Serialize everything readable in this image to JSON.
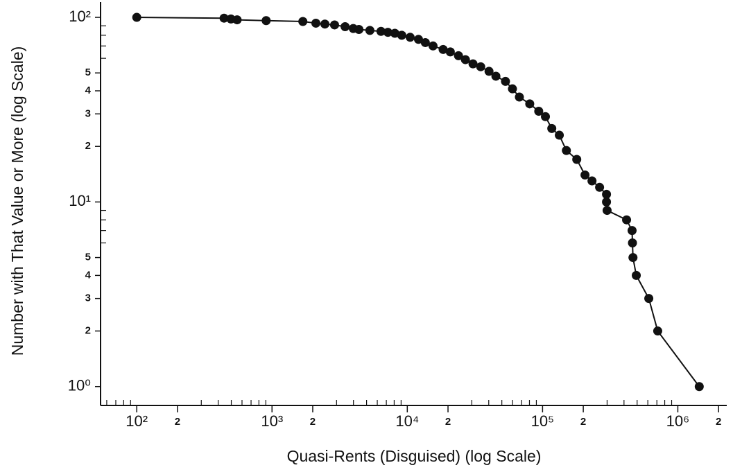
{
  "chart_data": {
    "type": "line",
    "x_label": "Quasi-Rents (Disguised) (log Scale)",
    "y_label": "Number with That Value or More (log Scale)",
    "xscale": "log",
    "yscale": "log",
    "xlim": [
      54,
      2300000
    ],
    "ylim": [
      0.79,
      121
    ],
    "xticks": [
      {
        "value": 100,
        "label": "10²"
      },
      {
        "value": 200,
        "label": "2"
      },
      {
        "value": 1000,
        "label": "10³"
      },
      {
        "value": 2000,
        "label": "2"
      },
      {
        "value": 10000,
        "label": "10⁴"
      },
      {
        "value": 20000,
        "label": "2"
      },
      {
        "value": 100000,
        "label": "10⁵"
      },
      {
        "value": 200000,
        "label": "2"
      },
      {
        "value": 1000000,
        "label": "10⁶"
      },
      {
        "value": 2000000,
        "label": "2"
      }
    ],
    "xminorticks": [
      60,
      70,
      80,
      90,
      300,
      400,
      500,
      600,
      700,
      800,
      900,
      3000,
      4000,
      5000,
      6000,
      7000,
      8000,
      9000,
      30000,
      40000,
      50000,
      60000,
      70000,
      80000,
      90000,
      300000,
      400000,
      500000,
      600000,
      700000,
      800000,
      900000
    ],
    "yticks": [
      {
        "value": 1,
        "label": "10⁰"
      },
      2,
      3,
      4,
      5,
      {
        "value": 10,
        "label": "10¹"
      },
      {
        "value": 20,
        "label": "2"
      },
      {
        "value": 30,
        "label": "3"
      },
      {
        "value": 40,
        "label": "4"
      },
      {
        "value": 50,
        "label": "5"
      },
      {
        "value": 100,
        "label": "10²"
      }
    ],
    "yminorticks": [
      6,
      7,
      8,
      9,
      60,
      70,
      80,
      90
    ],
    "series": [
      {
        "color": "#111111",
        "x": [
          100,
          442,
          497,
          552,
          905,
          1690,
          2110,
          2460,
          2900,
          3470,
          3990,
          4390,
          5290,
          6390,
          7190,
          8090,
          9100,
          10500,
          12100,
          13600,
          15500,
          18400,
          20800,
          23900,
          26900,
          30600,
          34900,
          40200,
          45200,
          53200,
          59900,
          67400,
          80400,
          93700,
          105000,
          117000,
          133000,
          150000,
          179000,
          206000,
          232000,
          264000,
          297000,
          297000,
          300000,
          418000,
          459000,
          462000,
          466000,
          493000,
          610000,
          710000,
          1440000
        ],
        "values": [
          100,
          99,
          98,
          97,
          96,
          95,
          93,
          92,
          91,
          89,
          87,
          86,
          85,
          84,
          83,
          82,
          80,
          78,
          76,
          73,
          70,
          67,
          65,
          62,
          59,
          56,
          54,
          51,
          48,
          45,
          41,
          37,
          34,
          31,
          29,
          25,
          23,
          19,
          17,
          14,
          13,
          12,
          11,
          10,
          9,
          8,
          7,
          6,
          5,
          4,
          3,
          2,
          1
        ]
      }
    ]
  }
}
